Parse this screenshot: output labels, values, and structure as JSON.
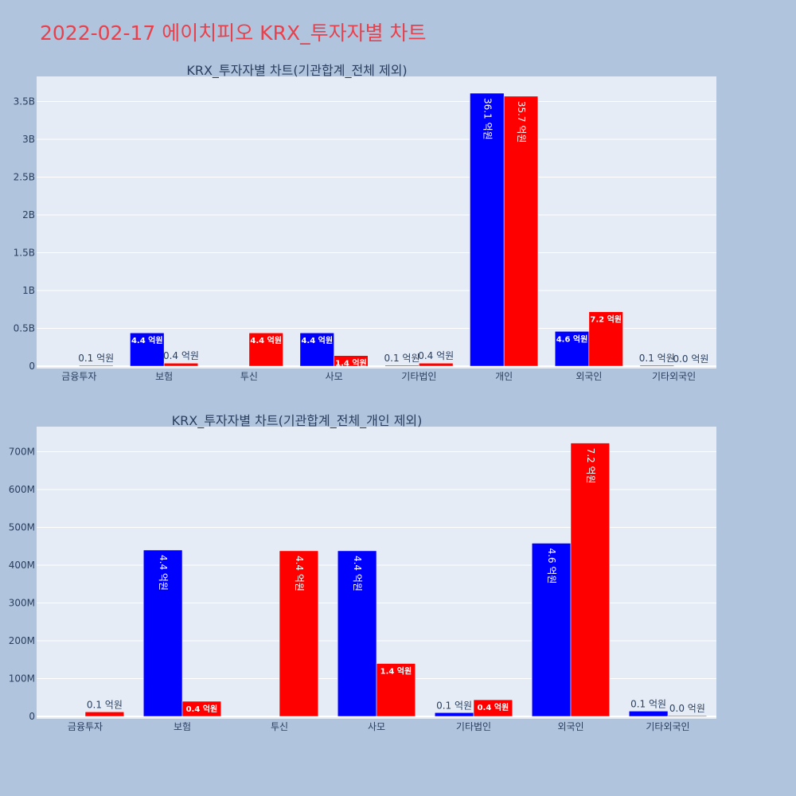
{
  "page": {
    "title": "2022-02-17 에이치피오 KRX_투자자별 차트"
  },
  "chart_data": [
    {
      "type": "bar",
      "title": "KRX_투자자별 차트(기관합계_전체 제외)",
      "categories": [
        "금융투자",
        "보험",
        "투신",
        "사모",
        "기타법인",
        "개인",
        "외국인",
        "기타외국인"
      ],
      "ylim": [
        0,
        3800000000
      ],
      "yticks": [
        0,
        500000000,
        1000000000,
        1500000000,
        2000000000,
        2500000000,
        3000000000,
        3500000000
      ],
      "yticklabels": [
        "0",
        "0.5B",
        "1B",
        "1.5B",
        "2B",
        "2.5B",
        "3B",
        "3.5B"
      ],
      "grid": true,
      "series": [
        {
          "color": "#0000ff",
          "values": [
            0,
            440000000,
            0,
            440000000,
            10000000,
            3610000000,
            460000000,
            10000000
          ],
          "labels": [
            "",
            "4.4 억원",
            "",
            "4.4 억원",
            "0.1 억원",
            "36.1 억원",
            "4.6 억원",
            "0.1 억원"
          ]
        },
        {
          "color": "#ff0000",
          "values": [
            10000000,
            40000000,
            440000000,
            140000000,
            40000000,
            3570000000,
            720000000,
            0
          ],
          "labels": [
            "0.1 억원",
            "0.4 억원",
            "4.4 억원",
            "1.4 억원",
            "0.4 억원",
            "35.7 억원",
            "7.2 억원",
            "0.0 억원"
          ]
        }
      ]
    },
    {
      "type": "bar",
      "title": "KRX_투자자별 차트(기관합계_전체_개인 제외)",
      "categories": [
        "금융투자",
        "보험",
        "투신",
        "사모",
        "기타법인",
        "외국인",
        "기타외국인"
      ],
      "ylim": [
        0,
        760000000
      ],
      "yticks": [
        0,
        100000000,
        200000000,
        300000000,
        400000000,
        500000000,
        600000000,
        700000000
      ],
      "yticklabels": [
        "0",
        "100M",
        "200M",
        "300M",
        "400M",
        "500M",
        "600M",
        "700M"
      ],
      "grid": true,
      "series": [
        {
          "color": "#0000ff",
          "values": [
            0,
            440000000,
            0,
            438000000,
            10000000,
            458000000,
            14000000
          ],
          "labels": [
            "",
            "4.4 억원",
            "",
            "4.4 억원",
            "0.1 억원",
            "4.6 억원",
            "0.1 억원"
          ]
        },
        {
          "color": "#ff0000",
          "values": [
            12000000,
            40000000,
            438000000,
            140000000,
            44000000,
            723000000,
            1000000
          ],
          "labels": [
            "0.1 억원",
            "0.4 억원",
            "4.4 억원",
            "1.4 억원",
            "0.4 억원",
            "7.2 억원",
            "0.0 억원"
          ]
        }
      ]
    }
  ]
}
